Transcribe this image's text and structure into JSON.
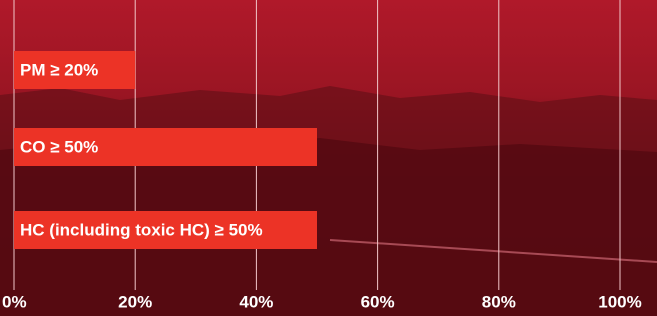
{
  "chart_data": {
    "type": "bar",
    "orientation": "horizontal",
    "categories": [
      "PM ≥ 20%",
      "CO ≥ 50%",
      "HC (including toxic HC) ≥ 50%"
    ],
    "values": [
      20,
      50,
      50
    ],
    "color": "#ec3326",
    "xlim": [
      0,
      100
    ],
    "xticks": [
      {
        "value": 0,
        "label": "0%"
      },
      {
        "value": 20,
        "label": "20%"
      },
      {
        "value": 40,
        "label": "40%"
      },
      {
        "value": 60,
        "label": "60%"
      },
      {
        "value": 80,
        "label": "80%"
      },
      {
        "value": 100,
        "label": "100%"
      }
    ],
    "grid": true
  }
}
